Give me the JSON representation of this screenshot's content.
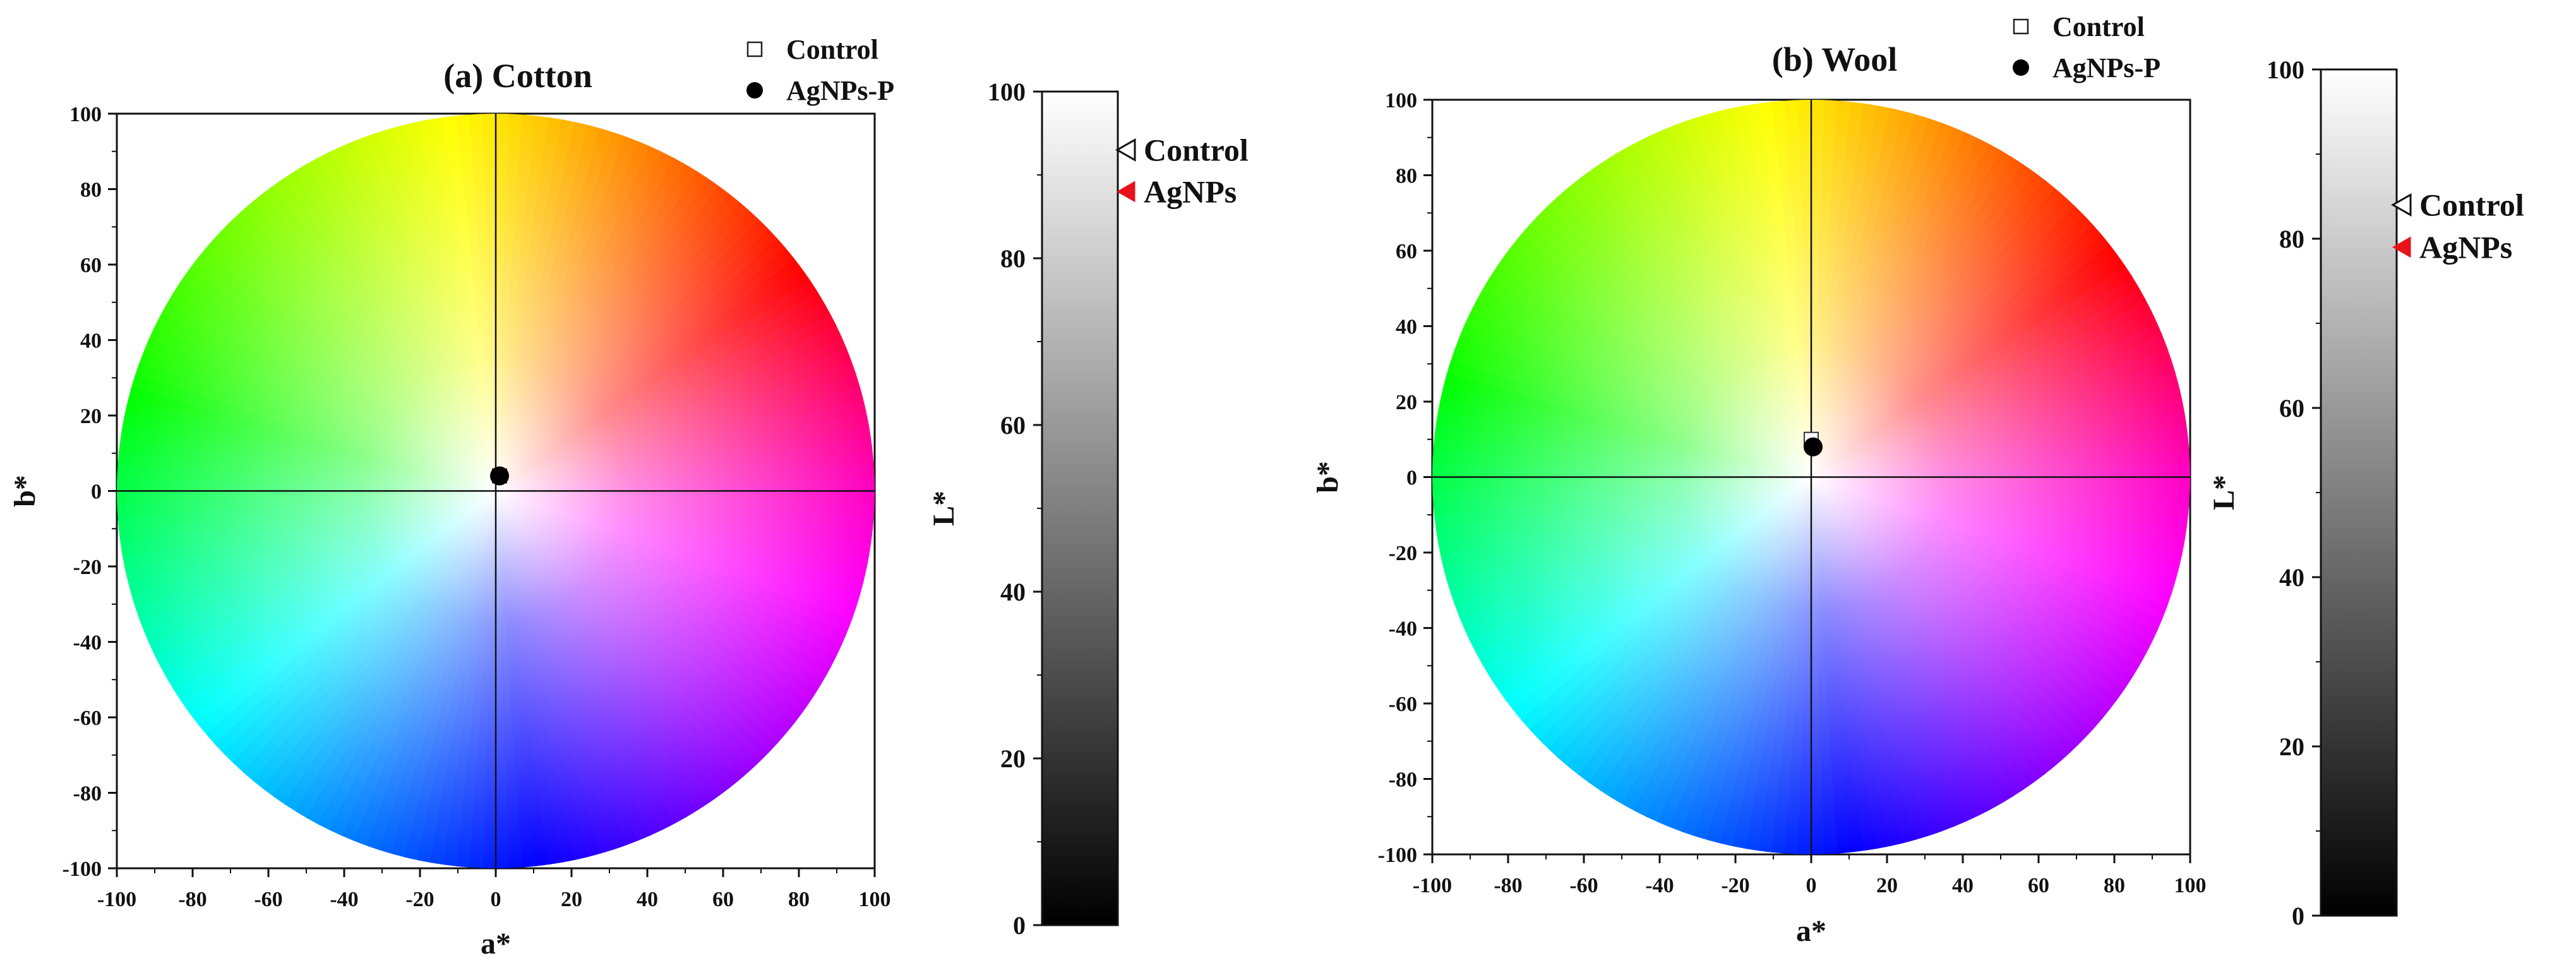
{
  "chart_data": [
    {
      "panel": "a",
      "type": "scatter",
      "title": "(a) Cotton",
      "xlabel": "a*",
      "ylabel": "b*",
      "xlim": [
        -100,
        100
      ],
      "ylim": [
        -100,
        100
      ],
      "x_ticks": [
        -100,
        -80,
        -60,
        -40,
        -20,
        0,
        20,
        40,
        60,
        80,
        100
      ],
      "y_ticks": [
        -100,
        -80,
        -60,
        -40,
        -20,
        0,
        20,
        40,
        60,
        80,
        100
      ],
      "background": "CIELAB a*b* hue wheel",
      "legend": [
        "Control",
        "AgNPs-P"
      ],
      "series": [
        {
          "name": "Control",
          "marker": "open-square",
          "x": [
            1
          ],
          "y": [
            4
          ]
        },
        {
          "name": "AgNPs-P",
          "marker": "filled-circle",
          "x": [
            1
          ],
          "y": [
            4
          ]
        }
      ],
      "lightness_bar": {
        "label": "L*",
        "ylim": [
          0,
          100
        ],
        "ticks": [
          0,
          20,
          40,
          60,
          80,
          100
        ],
        "legend": [
          "Control",
          "AgNPs"
        ],
        "series": [
          {
            "name": "Control",
            "marker": "open-triangle-left",
            "value": 93
          },
          {
            "name": "AgNPs",
            "marker": "filled-triangle-left",
            "value": 88
          }
        ]
      }
    },
    {
      "panel": "b",
      "type": "scatter",
      "title": "(b) Wool",
      "xlabel": "a*",
      "ylabel": "b*",
      "xlim": [
        -100,
        100
      ],
      "ylim": [
        -100,
        100
      ],
      "x_ticks": [
        -100,
        -80,
        -60,
        -40,
        -20,
        0,
        20,
        40,
        60,
        80,
        100
      ],
      "y_ticks": [
        -100,
        -80,
        -60,
        -40,
        -20,
        0,
        20,
        40,
        60,
        80,
        100
      ],
      "background": "CIELAB a*b* hue wheel",
      "legend": [
        "Control",
        "AgNPs-P"
      ],
      "series": [
        {
          "name": "Control",
          "marker": "open-square",
          "x": [
            0
          ],
          "y": [
            10
          ]
        },
        {
          "name": "AgNPs-P",
          "marker": "filled-circle",
          "x": [
            0.5
          ],
          "y": [
            8
          ]
        }
      ],
      "lightness_bar": {
        "label": "L*",
        "ylim": [
          0,
          100
        ],
        "ticks": [
          0,
          20,
          40,
          60,
          80,
          100
        ],
        "legend": [
          "Control",
          "AgNPs"
        ],
        "series": [
          {
            "name": "Control",
            "marker": "open-triangle-left",
            "value": 84
          },
          {
            "name": "AgNPs",
            "marker": "filled-triangle-left",
            "value": 79
          }
        ]
      }
    }
  ],
  "colors": {
    "axis": "#111111",
    "marker_fill": "#000000",
    "agnps_triangle": "#e8121b",
    "bar_top": "#ffffff",
    "bar_bottom": "#000000"
  }
}
